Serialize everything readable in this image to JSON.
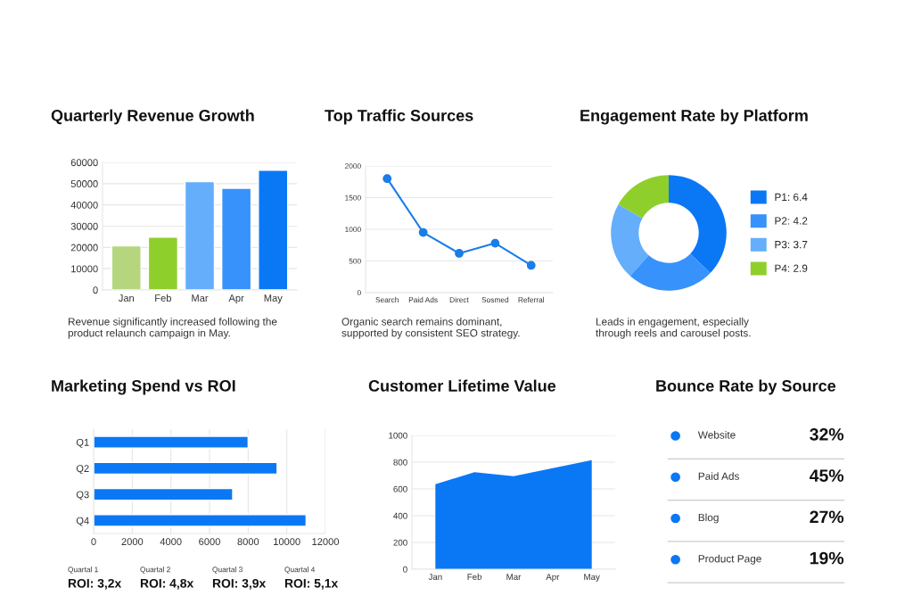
{
  "chart_data": [
    {
      "type": "bar",
      "title": "Quarterly Revenue Growth",
      "categories": [
        "Jan",
        "Feb",
        "Mar",
        "Apr",
        "May"
      ],
      "values": [
        20700,
        24800,
        51000,
        47800,
        56300
      ],
      "colors": [
        "#b5d67f",
        "#8fcf2c",
        "#64aefc",
        "#3792fb",
        "#0a78f5"
      ],
      "ylim": [
        0,
        60000
      ],
      "yticks": [
        0,
        10000,
        20000,
        30000,
        40000,
        50000,
        60000
      ],
      "grid": "y",
      "annotations": [
        "Revenue significantly increased following the\nproduct relaunch campaign in May."
      ]
    },
    {
      "type": "line",
      "title": "Top Traffic Sources",
      "categories": [
        "Search",
        "Paid Ads",
        "Direct",
        "Sosmed",
        "Referral"
      ],
      "series": [
        {
          "color": "#1a7de8",
          "values": [
            1800,
            950,
            620,
            780,
            430
          ]
        }
      ],
      "marker": "circle",
      "ylim": [
        0,
        2000
      ],
      "yticks": [
        0,
        500,
        1000,
        1500,
        2000
      ],
      "grid": "y",
      "annotations": [
        "Organic search remains dominant,\nsupported by consistent SEO strategy."
      ]
    },
    {
      "type": "donut",
      "title": "Engagement Rate by Platform",
      "categories": [
        "P1: 6.4",
        "P2: 4.2",
        "P3: 3.7",
        "P4: 2.9"
      ],
      "values": [
        6.4,
        4.2,
        3.7,
        2.9
      ],
      "colors": [
        "#0a78f5",
        "#3792fb",
        "#64aefc",
        "#8fcf2c"
      ],
      "legend": "right",
      "annotations": [
        "Leads in engagement, especially\nthrough reels and carousel posts."
      ]
    },
    {
      "type": "bar",
      "orientation": "horizontal",
      "title": "Marketing Spend vs ROI",
      "categories": [
        "Q1",
        "Q2",
        "Q3",
        "Q4"
      ],
      "values": [
        8000,
        9500,
        7200,
        11000
      ],
      "colors": [
        "#0a78f5",
        "#0a78f5",
        "#0a78f5",
        "#0a78f5"
      ],
      "xlim": [
        0,
        12000
      ],
      "xticks": [
        0,
        2000,
        4000,
        6000,
        8000,
        10000,
        12000
      ],
      "grid": "x",
      "annotations": [
        "Quartal 1",
        "ROI: 3,2x",
        "Quartal 2",
        "ROI: 4,8x",
        "Quartal 3",
        "ROI: 3,9x",
        "Quartal 4",
        "ROI: 5,1x"
      ]
    },
    {
      "type": "area",
      "title": "Customer Lifetime Value",
      "categories": [
        "Jan",
        "Feb",
        "Mar",
        "Apr",
        "May"
      ],
      "series": [
        {
          "color": "#0a78f5",
          "values": [
            635,
            725,
            695,
            755,
            815
          ]
        }
      ],
      "ylim": [
        0,
        1000
      ],
      "yticks": [
        0,
        200,
        400,
        600,
        800,
        1000
      ],
      "grid": "y"
    },
    {
      "type": "other",
      "title": "Bounce Rate by Source",
      "categories": [
        "Website",
        "Paid Ads",
        "Blog",
        "Product Page"
      ],
      "values": [
        32,
        45,
        27,
        19
      ],
      "value_labels": [
        "32%",
        "45%",
        "27%",
        "19%"
      ],
      "color": "#0a78f5"
    }
  ]
}
